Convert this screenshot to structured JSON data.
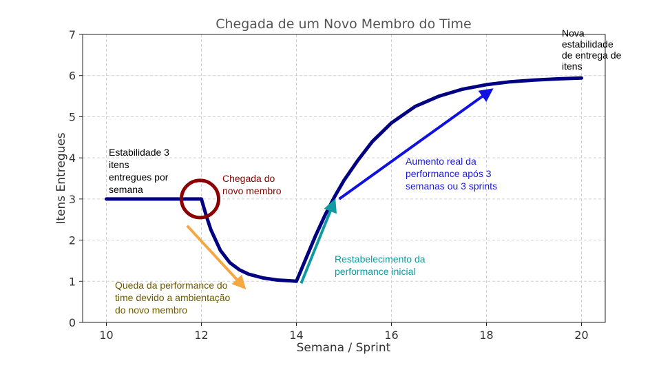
{
  "chart_data": {
    "type": "line",
    "title": "Chegada de um Novo Membro do Time",
    "xlabel": "Semana / Sprint",
    "ylabel": "Itens Entregues",
    "xlim": [
      9.5,
      20.5
    ],
    "ylim": [
      0,
      7
    ],
    "xticks": [
      10,
      12,
      14,
      16,
      18,
      20
    ],
    "yticks": [
      0,
      1,
      2,
      3,
      4,
      5,
      6,
      7
    ],
    "grid": true,
    "series": [
      {
        "color": "#000080",
        "x": [
          10,
          11,
          12,
          12.1,
          12.2,
          12.4,
          12.6,
          12.8,
          13.0,
          13.3,
          13.6,
          13.9,
          14.0,
          14.2,
          14.4,
          14.6,
          14.8,
          15.0,
          15.3,
          15.6,
          16.0,
          16.5,
          17.0,
          17.5,
          18.0,
          18.5,
          19.0,
          19.5,
          20.0
        ],
        "y": [
          3,
          3,
          3,
          2.6,
          2.25,
          1.75,
          1.45,
          1.28,
          1.17,
          1.08,
          1.03,
          1.01,
          1.0,
          1.55,
          2.1,
          2.6,
          3.05,
          3.45,
          3.95,
          4.4,
          4.85,
          5.25,
          5.5,
          5.67,
          5.78,
          5.85,
          5.89,
          5.92,
          5.94
        ]
      }
    ],
    "annotations": [
      {
        "id": "stability",
        "text_lines": [
          "Estabilidade 3",
          "itens",
          "entregues por",
          "semana"
        ],
        "color": "#000000"
      },
      {
        "id": "arrival",
        "text_lines": [
          "Chegada do",
          "novo membro"
        ],
        "color": "#8b0000"
      },
      {
        "id": "drop",
        "text_lines": [
          "Queda da performance do",
          "time devido a ambientação",
          "do novo membro"
        ],
        "color": "#6b5a00"
      },
      {
        "id": "recovery",
        "text_lines": [
          "Restabelecimento da",
          "performance inicial"
        ],
        "color": "#0e9aa0"
      },
      {
        "id": "increase",
        "text_lines": [
          "Aumento real da",
          "performance após 3",
          "semanas ou 3 sprints"
        ],
        "color": "#1a1ad6"
      },
      {
        "id": "new-stability",
        "text_lines": [
          "Nova",
          "estabilidade",
          "de entrega de",
          "itens"
        ],
        "color": "#000000"
      }
    ],
    "marker_circle": {
      "x": 12,
      "y": 3,
      "color": "#8b0000"
    },
    "arrows": [
      {
        "id": "drop-arrow",
        "color": "#f5a742",
        "from": [
          11.7,
          2.35
        ],
        "to": [
          12.9,
          0.85
        ]
      },
      {
        "id": "recovery-arrow",
        "color": "#0e9aa0",
        "from": [
          14.1,
          0.95
        ],
        "to": [
          14.8,
          2.95
        ]
      },
      {
        "id": "increase-arrow",
        "color": "#1010e0",
        "from": [
          14.9,
          3.0
        ],
        "to": [
          18.1,
          5.65
        ]
      }
    ]
  }
}
